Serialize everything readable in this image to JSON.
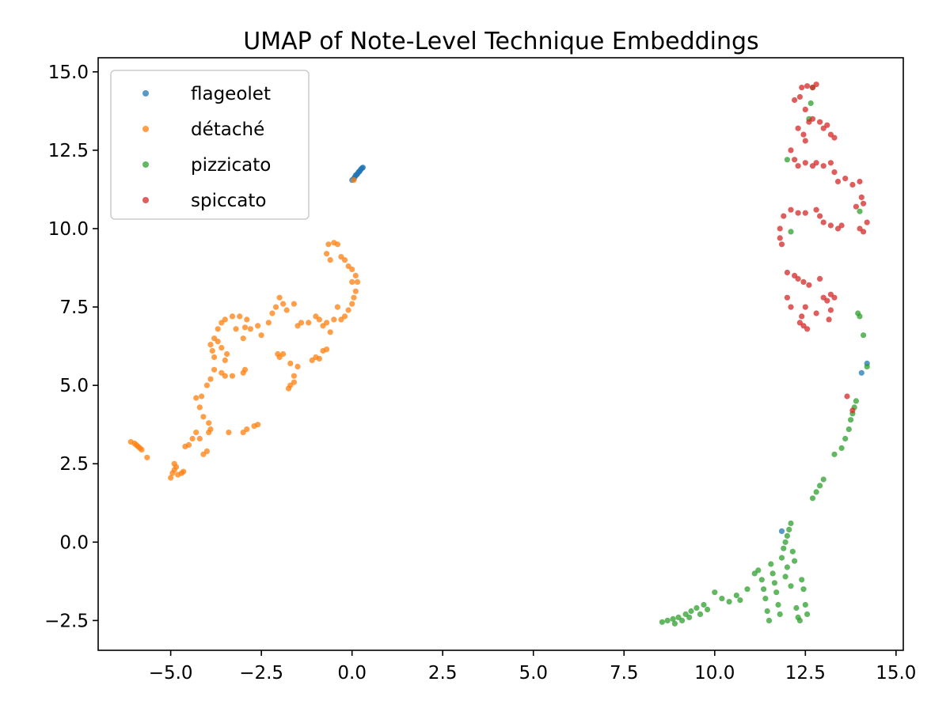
{
  "chart_data": {
    "type": "scatter",
    "title": "UMAP of Note-Level Technique Embeddings",
    "xlabel": "",
    "ylabel": "",
    "xlim": [
      -7.0,
      15.2
    ],
    "ylim": [
      -3.45,
      15.45
    ],
    "xticks": [
      -5.0,
      -2.5,
      0.0,
      2.5,
      5.0,
      7.5,
      10.0,
      12.5,
      15.0
    ],
    "xtick_labels": [
      "−5.0",
      "−2.5",
      "0.0",
      "2.5",
      "5.0",
      "7.5",
      "10.0",
      "12.5",
      "15.0"
    ],
    "yticks": [
      -2.5,
      0.0,
      2.5,
      5.0,
      7.5,
      10.0,
      12.5,
      15.0
    ],
    "ytick_labels": [
      "−2.5",
      "0.0",
      "2.5",
      "5.0",
      "7.5",
      "10.0",
      "12.5",
      "15.0"
    ],
    "grid": false,
    "legend_position": "top-left",
    "series": [
      {
        "name": "flageolet",
        "color": "#1f77b4",
        "points": [
          [
            0.0,
            11.55
          ],
          [
            0.05,
            11.6
          ],
          [
            0.08,
            11.65
          ],
          [
            0.1,
            11.7
          ],
          [
            0.13,
            11.72
          ],
          [
            0.15,
            11.75
          ],
          [
            0.18,
            11.8
          ],
          [
            0.2,
            11.82
          ],
          [
            0.22,
            11.85
          ],
          [
            0.25,
            11.9
          ],
          [
            0.28,
            11.93
          ],
          [
            0.3,
            11.95
          ],
          [
            11.85,
            0.35
          ],
          [
            14.05,
            5.4
          ],
          [
            14.2,
            5.7
          ]
        ]
      },
      {
        "name": "détaché",
        "color": "#ff7f0e",
        "points": [
          [
            -6.1,
            3.2
          ],
          [
            -6.0,
            3.15
          ],
          [
            -5.95,
            3.1
          ],
          [
            -5.9,
            3.05
          ],
          [
            -5.85,
            3.0
          ],
          [
            -5.8,
            2.95
          ],
          [
            -5.65,
            2.7
          ],
          [
            -5.0,
            2.05
          ],
          [
            -4.95,
            2.2
          ],
          [
            -4.9,
            2.3
          ],
          [
            -4.85,
            2.4
          ],
          [
            -4.9,
            2.5
          ],
          [
            -4.8,
            2.15
          ],
          [
            -4.7,
            2.2
          ],
          [
            -4.65,
            2.25
          ],
          [
            -4.6,
            3.05
          ],
          [
            -4.5,
            3.1
          ],
          [
            -4.4,
            3.3
          ],
          [
            -4.3,
            3.5
          ],
          [
            -4.2,
            3.3
          ],
          [
            -4.1,
            2.8
          ],
          [
            -4.0,
            2.9
          ],
          [
            -3.95,
            3.5
          ],
          [
            -3.9,
            3.6
          ],
          [
            -3.95,
            3.8
          ],
          [
            -4.1,
            4.0
          ],
          [
            -4.2,
            4.3
          ],
          [
            -4.3,
            4.6
          ],
          [
            -4.15,
            4.65
          ],
          [
            -4.0,
            5.0
          ],
          [
            -3.9,
            5.2
          ],
          [
            -3.8,
            5.5
          ],
          [
            -3.6,
            5.4
          ],
          [
            -3.5,
            5.3
          ],
          [
            -3.3,
            5.3
          ],
          [
            -3.0,
            5.4
          ],
          [
            -2.95,
            5.5
          ],
          [
            -3.5,
            5.8
          ],
          [
            -3.45,
            6.0
          ],
          [
            -3.6,
            6.2
          ],
          [
            -3.7,
            6.4
          ],
          [
            -3.8,
            6.5
          ],
          [
            -3.9,
            6.3
          ],
          [
            -3.85,
            6.1
          ],
          [
            -3.8,
            5.9
          ],
          [
            -3.7,
            6.8
          ],
          [
            -3.6,
            7.0
          ],
          [
            -3.5,
            7.1
          ],
          [
            -3.3,
            7.2
          ],
          [
            -3.1,
            7.2
          ],
          [
            -2.9,
            7.1
          ],
          [
            -2.95,
            6.85
          ],
          [
            -2.8,
            6.8
          ],
          [
            -3.2,
            6.8
          ],
          [
            -3.0,
            6.5
          ],
          [
            -3.4,
            3.5
          ],
          [
            -3.0,
            3.5
          ],
          [
            -2.9,
            3.6
          ],
          [
            -2.7,
            3.7
          ],
          [
            -2.6,
            3.75
          ],
          [
            -2.5,
            6.6
          ],
          [
            -2.6,
            6.9
          ],
          [
            -2.3,
            7.0
          ],
          [
            -2.2,
            7.3
          ],
          [
            -2.1,
            7.5
          ],
          [
            -2.0,
            7.8
          ],
          [
            -1.9,
            7.6
          ],
          [
            -1.8,
            7.4
          ],
          [
            -1.6,
            7.6
          ],
          [
            -2.05,
            6.0
          ],
          [
            -2.0,
            5.9
          ],
          [
            -1.9,
            6.0
          ],
          [
            -1.7,
            5.7
          ],
          [
            -1.5,
            5.6
          ],
          [
            -1.6,
            5.3
          ],
          [
            -1.7,
            5.0
          ],
          [
            -1.75,
            4.9
          ],
          [
            -1.6,
            5.1
          ],
          [
            -1.5,
            6.9
          ],
          [
            -1.4,
            7.0
          ],
          [
            -1.2,
            7.0
          ],
          [
            -1.0,
            7.2
          ],
          [
            -0.9,
            7.1
          ],
          [
            -0.8,
            6.9
          ],
          [
            -0.7,
            7.0
          ],
          [
            -0.6,
            6.7
          ],
          [
            -1.1,
            5.8
          ],
          [
            -1.0,
            5.9
          ],
          [
            -0.9,
            5.85
          ],
          [
            -0.8,
            6.1
          ],
          [
            -0.7,
            6.15
          ],
          [
            -0.5,
            7.1
          ],
          [
            -0.3,
            7.1
          ],
          [
            -0.2,
            7.2
          ],
          [
            -0.1,
            7.4
          ],
          [
            0.0,
            7.6
          ],
          [
            0.05,
            7.8
          ],
          [
            0.1,
            8.0
          ],
          [
            -0.4,
            7.5
          ],
          [
            -0.6,
            9.0
          ],
          [
            -0.7,
            9.2
          ],
          [
            -0.65,
            9.5
          ],
          [
            -0.5,
            9.55
          ],
          [
            -0.4,
            9.5
          ],
          [
            -0.3,
            9.1
          ],
          [
            -0.2,
            9.0
          ],
          [
            -0.1,
            8.8
          ],
          [
            0.0,
            8.7
          ],
          [
            0.1,
            8.5
          ],
          [
            0.15,
            8.3
          ],
          [
            0.0,
            8.3
          ],
          [
            0.05,
            11.55
          ]
        ]
      },
      {
        "name": "pizzicato",
        "color": "#2ca02c",
        "points": [
          [
            8.55,
            -2.55
          ],
          [
            8.7,
            -2.5
          ],
          [
            8.85,
            -2.45
          ],
          [
            9.0,
            -2.4
          ],
          [
            9.2,
            -2.3
          ],
          [
            9.35,
            -2.2
          ],
          [
            9.5,
            -2.1
          ],
          [
            9.7,
            -2.0
          ],
          [
            8.9,
            -2.6
          ],
          [
            9.1,
            -2.5
          ],
          [
            9.3,
            -2.4
          ],
          [
            9.6,
            -2.3
          ],
          [
            9.8,
            -2.15
          ],
          [
            10.0,
            -1.6
          ],
          [
            10.2,
            -1.8
          ],
          [
            10.4,
            -1.9
          ],
          [
            10.6,
            -1.7
          ],
          [
            10.7,
            -1.85
          ],
          [
            10.9,
            -1.5
          ],
          [
            11.1,
            -1.0
          ],
          [
            11.2,
            -0.9
          ],
          [
            11.3,
            -1.2
          ],
          [
            11.35,
            -1.5
          ],
          [
            11.4,
            -1.8
          ],
          [
            11.45,
            -2.2
          ],
          [
            11.5,
            -2.5
          ],
          [
            11.55,
            -0.7
          ],
          [
            11.6,
            -1.0
          ],
          [
            11.65,
            -1.3
          ],
          [
            11.7,
            -1.6
          ],
          [
            11.75,
            -2.0
          ],
          [
            11.8,
            -2.3
          ],
          [
            11.85,
            -0.5
          ],
          [
            11.9,
            -0.2
          ],
          [
            11.95,
            0.0
          ],
          [
            12.0,
            0.2
          ],
          [
            12.05,
            0.4
          ],
          [
            12.1,
            0.6
          ],
          [
            12.15,
            -0.3
          ],
          [
            12.2,
            -0.6
          ],
          [
            12.25,
            -2.1
          ],
          [
            12.3,
            -2.4
          ],
          [
            12.35,
            -2.5
          ],
          [
            12.4,
            -1.2
          ],
          [
            12.45,
            -1.5
          ],
          [
            12.5,
            -2.0
          ],
          [
            12.55,
            -2.3
          ],
          [
            12.0,
            -0.8
          ],
          [
            11.95,
            -1.1
          ],
          [
            12.1,
            -1.4
          ],
          [
            12.7,
            1.4
          ],
          [
            12.8,
            1.6
          ],
          [
            12.9,
            1.8
          ],
          [
            13.0,
            2.0
          ],
          [
            13.3,
            2.8
          ],
          [
            13.5,
            3.0
          ],
          [
            13.6,
            3.3
          ],
          [
            13.7,
            3.6
          ],
          [
            13.75,
            3.9
          ],
          [
            13.8,
            4.1
          ],
          [
            13.85,
            4.3
          ],
          [
            13.9,
            4.5
          ],
          [
            13.95,
            7.3
          ],
          [
            14.0,
            7.2
          ],
          [
            14.1,
            6.6
          ],
          [
            14.2,
            5.6
          ],
          [
            12.0,
            12.2
          ],
          [
            12.6,
            13.5
          ],
          [
            12.7,
            14.5
          ],
          [
            12.65,
            14.0
          ],
          [
            14.0,
            10.55
          ],
          [
            12.1,
            9.9
          ]
        ]
      },
      {
        "name": "spiccato",
        "color": "#d62728",
        "points": [
          [
            12.2,
            14.1
          ],
          [
            12.35,
            14.2
          ],
          [
            12.4,
            14.5
          ],
          [
            12.55,
            14.55
          ],
          [
            12.7,
            14.5
          ],
          [
            12.8,
            14.6
          ],
          [
            12.5,
            13.8
          ],
          [
            12.6,
            13.4
          ],
          [
            12.3,
            13.2
          ],
          [
            12.45,
            13.0
          ],
          [
            12.7,
            13.5
          ],
          [
            12.9,
            13.4
          ],
          [
            13.0,
            13.2
          ],
          [
            13.1,
            13.3
          ],
          [
            13.2,
            13.0
          ],
          [
            13.3,
            12.9
          ],
          [
            12.5,
            12.8
          ],
          [
            12.1,
            12.5
          ],
          [
            12.2,
            12.2
          ],
          [
            12.3,
            12.0
          ],
          [
            12.5,
            12.1
          ],
          [
            12.7,
            12.0
          ],
          [
            12.8,
            12.1
          ],
          [
            13.0,
            12.0
          ],
          [
            13.2,
            12.1
          ],
          [
            13.3,
            11.8
          ],
          [
            13.4,
            11.5
          ],
          [
            13.6,
            11.6
          ],
          [
            13.8,
            11.4
          ],
          [
            14.0,
            11.5
          ],
          [
            14.05,
            11.0
          ],
          [
            14.1,
            10.8
          ],
          [
            13.9,
            10.7
          ],
          [
            14.2,
            10.2
          ],
          [
            14.1,
            9.9
          ],
          [
            14.0,
            10.0
          ],
          [
            13.5,
            10.1
          ],
          [
            13.4,
            10.0
          ],
          [
            13.2,
            10.1
          ],
          [
            13.0,
            10.2
          ],
          [
            12.9,
            10.4
          ],
          [
            12.8,
            10.6
          ],
          [
            12.5,
            10.5
          ],
          [
            12.3,
            10.5
          ],
          [
            12.1,
            10.6
          ],
          [
            11.9,
            10.4
          ],
          [
            11.8,
            10.0
          ],
          [
            11.8,
            9.7
          ],
          [
            11.85,
            9.5
          ],
          [
            12.0,
            8.6
          ],
          [
            12.2,
            8.5
          ],
          [
            12.3,
            8.4
          ],
          [
            12.45,
            8.3
          ],
          [
            12.6,
            8.2
          ],
          [
            12.9,
            8.4
          ],
          [
            13.0,
            7.8
          ],
          [
            13.1,
            7.7
          ],
          [
            13.2,
            7.9
          ],
          [
            13.3,
            7.8
          ],
          [
            13.2,
            7.4
          ],
          [
            13.15,
            7.1
          ],
          [
            12.8,
            7.3
          ],
          [
            12.5,
            7.5
          ],
          [
            12.4,
            7.2
          ],
          [
            12.35,
            7.0
          ],
          [
            12.45,
            6.9
          ],
          [
            12.55,
            6.8
          ],
          [
            12.1,
            7.5
          ],
          [
            12.0,
            7.8
          ],
          [
            13.65,
            4.65
          ],
          [
            13.8,
            4.2
          ]
        ]
      }
    ]
  }
}
